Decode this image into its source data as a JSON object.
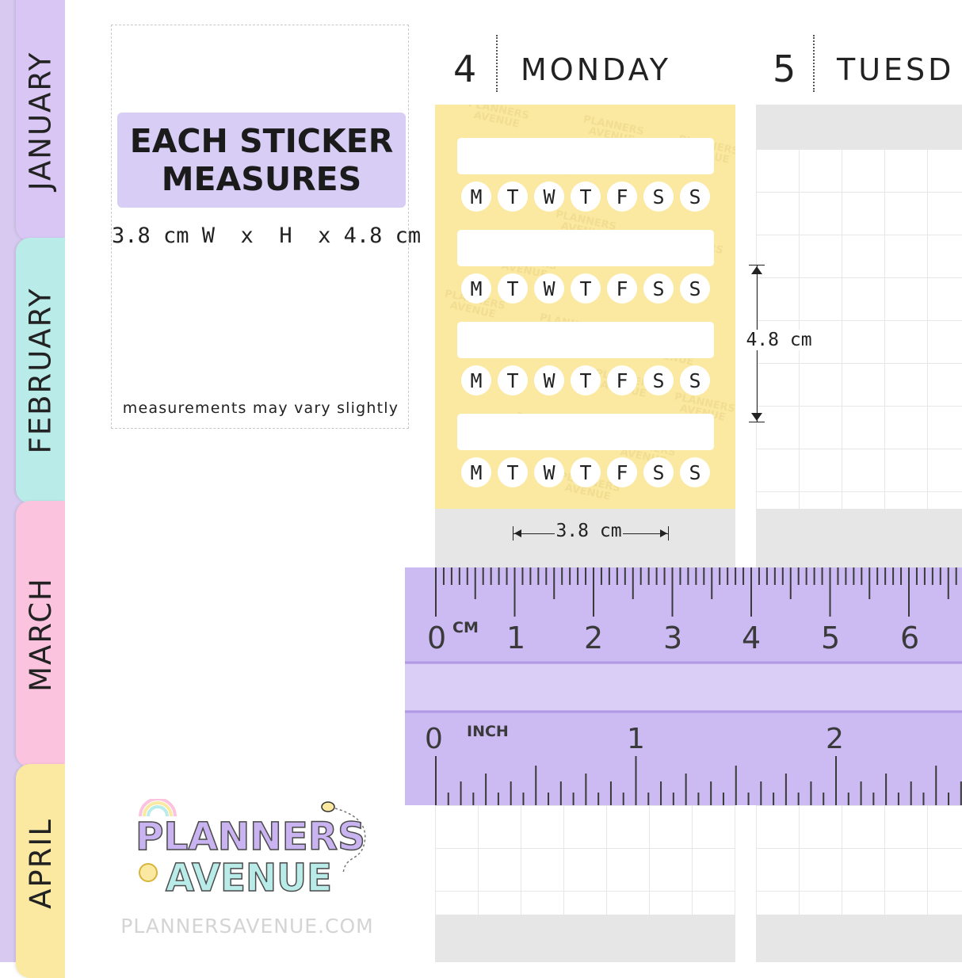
{
  "months": [
    "JANUARY",
    "FEBRUARY",
    "MARCH",
    "APRIL"
  ],
  "month_colors": {
    "JANUARY": "#d9c6f4",
    "FEBRUARY": "#b9ece9",
    "MARCH": "#fbc3de",
    "APRIL": "#fbe9a1",
    "tab_strip": "#d7c9f0"
  },
  "info_card": {
    "heading": "EACH STICKER\nMEASURES",
    "dimensions": "3.8 cm W  x  H  x 4.8 cm",
    "note": "measurements may vary slightly",
    "heading_bg": "#d8cdf5"
  },
  "days": [
    {
      "number": "4",
      "name": "MONDAY"
    },
    {
      "number": "5",
      "name": "TUESD"
    }
  ],
  "sticker": {
    "background": "#fbe9a2",
    "weekday_letters": [
      "M",
      "T",
      "W",
      "T",
      "F",
      "S",
      "S"
    ],
    "rows": 4,
    "watermark": "PLANNERS\nAVENUE"
  },
  "measurements": {
    "height_label": "4.8 cm",
    "width_label": "3.8 cm"
  },
  "ruler": {
    "color": "#c8b5f2",
    "cm_unit": "CM",
    "cm_numbers": [
      "0",
      "1",
      "2",
      "3",
      "4",
      "5",
      "6"
    ],
    "inch_unit": "INCH",
    "inch_numbers": [
      "0",
      "1",
      "2"
    ]
  },
  "logo": {
    "line1": "PLANNERS",
    "line2": "AVENUE",
    "letter_colors": [
      "#c9b3f0",
      "#fbe9a1",
      "#b9ece9",
      "#fbc3de",
      "#c9b3f0",
      "#fbe9a1",
      "#b9ece9",
      "#fbc3de"
    ]
  },
  "website": "PLANNERSAVENUE.COM"
}
